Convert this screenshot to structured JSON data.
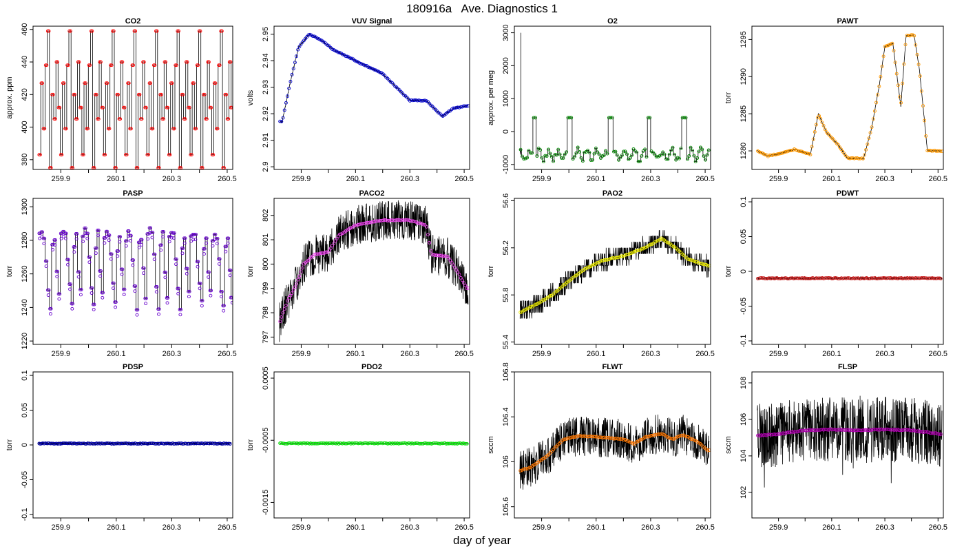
{
  "figure": {
    "title": "180916a   Ave. Diagnostics 1",
    "xlabel": "day of year"
  },
  "chart_data": [
    {
      "type": "line",
      "title": "CO2",
      "ylabel": "approx. ppm",
      "xlim": [
        259.8,
        260.52
      ],
      "ylim": [
        374,
        462
      ],
      "yticks": [
        380,
        400,
        420,
        440,
        460
      ],
      "xticks": [
        259.9,
        260.1,
        260.3,
        260.5
      ],
      "markerColor": "#ff0000",
      "pattern": "steps",
      "seed": 3,
      "stepLevels": [
        383,
        427,
        399,
        438,
        459,
        375,
        420,
        405,
        440,
        412
      ]
    },
    {
      "type": "line",
      "title": "VUV Signal",
      "ylabel": "volts",
      "xlim": [
        259.8,
        260.52
      ],
      "ylim": [
        2.899,
        2.953
      ],
      "yticks": [
        2.9,
        2.91,
        2.92,
        2.93,
        2.94,
        2.95
      ],
      "xticks": [
        259.9,
        260.1,
        260.3,
        260.5
      ],
      "markerColor": "#0000cc",
      "pattern": "curve",
      "seed": 5,
      "curve": [
        [
          259.83,
          2.917
        ],
        [
          259.86,
          2.932
        ],
        [
          259.89,
          2.945
        ],
        [
          259.93,
          2.95
        ],
        [
          259.97,
          2.948
        ],
        [
          260.02,
          2.944
        ],
        [
          260.08,
          2.941
        ],
        [
          260.14,
          2.938
        ],
        [
          260.2,
          2.935
        ],
        [
          260.26,
          2.929
        ],
        [
          260.3,
          2.925
        ],
        [
          260.36,
          2.925
        ],
        [
          260.42,
          2.919
        ],
        [
          260.46,
          2.922
        ],
        [
          260.51,
          2.923
        ]
      ]
    },
    {
      "type": "line",
      "title": "O2",
      "ylabel": "approx. per meg",
      "xlim": [
        259.8,
        260.52
      ],
      "ylim": [
        -1150,
        3200
      ],
      "yticks": [
        -1000,
        0,
        1000,
        2000,
        3000
      ],
      "xticks": [
        259.9,
        260.1,
        260.3,
        260.5
      ],
      "markerColor": "#008800",
      "pattern": "o2",
      "seed": 7,
      "spikeX": [
        259.87,
        260.0,
        260.15,
        260.29,
        260.42
      ]
    },
    {
      "type": "line",
      "title": "PAWT",
      "ylabel": "torr",
      "xlim": [
        259.8,
        260.52
      ],
      "ylim": [
        1277.5,
        1296.8
      ],
      "yticks": [
        1280,
        1285,
        1290,
        1295
      ],
      "xticks": [
        259.9,
        260.1,
        260.3,
        260.5
      ],
      "markerColor": "#ff9900",
      "pattern": "curve",
      "seed": 9,
      "curve": [
        [
          259.82,
          1280
        ],
        [
          259.86,
          1279.3
        ],
        [
          259.9,
          1279.6
        ],
        [
          259.96,
          1280.2
        ],
        [
          260.02,
          1279.5
        ],
        [
          260.05,
          1285
        ],
        [
          260.08,
          1282.5
        ],
        [
          260.12,
          1281
        ],
        [
          260.16,
          1279
        ],
        [
          260.22,
          1279
        ],
        [
          260.25,
          1283
        ],
        [
          260.28,
          1289
        ],
        [
          260.3,
          1294
        ],
        [
          260.33,
          1294.5
        ],
        [
          260.36,
          1286
        ],
        [
          260.38,
          1295.5
        ],
        [
          260.41,
          1295.6
        ],
        [
          260.43,
          1291
        ],
        [
          260.46,
          1280
        ],
        [
          260.51,
          1280
        ]
      ]
    },
    {
      "type": "line",
      "title": "PASP",
      "ylabel": "torr",
      "xlim": [
        259.8,
        260.52
      ],
      "ylim": [
        1218,
        1305
      ],
      "yticks": [
        1220,
        1240,
        1260,
        1280,
        1300
      ],
      "xticks": [
        259.9,
        260.1,
        260.3,
        260.5
      ],
      "markerColor": "#6600cc",
      "pattern": "sawtooth",
      "seed": 11,
      "stepLevels": [
        1282,
        1286,
        1284,
        1270,
        1252,
        1241,
        1276,
        1283,
        1262,
        1248
      ]
    },
    {
      "type": "line",
      "title": "PACO2",
      "ylabel": "torr",
      "xlim": [
        259.8,
        260.52
      ],
      "ylim": [
        796.7,
        802.7
      ],
      "yticks": [
        797,
        798,
        799,
        800,
        801,
        802
      ],
      "xticks": [
        259.9,
        260.1,
        260.3,
        260.5
      ],
      "markerColor": "#ee44ee",
      "pattern": "curve",
      "seed": 13,
      "noise": 0.55,
      "curve": [
        [
          259.82,
          797.6
        ],
        [
          259.85,
          798.5
        ],
        [
          259.88,
          799.1
        ],
        [
          259.91,
          800.0
        ],
        [
          259.95,
          800.4
        ],
        [
          260.0,
          800.5
        ],
        [
          260.04,
          801.2
        ],
        [
          260.1,
          801.6
        ],
        [
          260.2,
          801.8
        ],
        [
          260.3,
          801.8
        ],
        [
          260.36,
          801.6
        ],
        [
          260.38,
          800.4
        ],
        [
          260.44,
          800.3
        ],
        [
          260.48,
          799.6
        ],
        [
          260.51,
          799.0
        ]
      ]
    },
    {
      "type": "line",
      "title": "PAO2",
      "ylabel": "torr",
      "xlim": [
        259.8,
        260.52
      ],
      "ylim": [
        55.38,
        56.62
      ],
      "yticks": [
        55.4,
        55.8,
        56.2,
        56.6
      ],
      "xticks": [
        259.9,
        260.1,
        260.3,
        260.5
      ],
      "markerColor": "#eeee00",
      "pattern": "curve",
      "seed": 17,
      "noise": 0.28,
      "quant": 0.05,
      "curve": [
        [
          259.82,
          55.65
        ],
        [
          259.88,
          55.72
        ],
        [
          259.94,
          55.8
        ],
        [
          260.0,
          55.92
        ],
        [
          260.06,
          56.02
        ],
        [
          260.12,
          56.09
        ],
        [
          260.2,
          56.13
        ],
        [
          260.28,
          56.2
        ],
        [
          260.34,
          56.28
        ],
        [
          260.38,
          56.22
        ],
        [
          260.44,
          56.1
        ],
        [
          260.51,
          56.05
        ]
      ]
    },
    {
      "type": "line",
      "title": "PDWT",
      "ylabel": "torr",
      "xlim": [
        259.8,
        260.52
      ],
      "ylim": [
        -0.105,
        0.105
      ],
      "yticks": [
        -0.1,
        -0.05,
        0.0,
        0.05,
        0.1
      ],
      "xticks": [
        259.9,
        260.1,
        260.3,
        260.5
      ],
      "markerColor": "#cc2222",
      "pattern": "flat",
      "seed": 19,
      "noise": 0.035,
      "curve": [
        [
          259.82,
          -0.01
        ],
        [
          260.51,
          -0.01
        ]
      ]
    },
    {
      "type": "line",
      "title": "PDSP",
      "ylabel": "torr",
      "xlim": [
        259.8,
        260.52
      ],
      "ylim": [
        -0.105,
        0.105
      ],
      "yticks": [
        -0.1,
        -0.05,
        0.0,
        0.05,
        0.1
      ],
      "xticks": [
        259.9,
        260.1,
        260.3,
        260.5
      ],
      "markerColor": "#0000aa",
      "pattern": "flat",
      "seed": 23,
      "noise": 0.04,
      "curve": [
        [
          259.82,
          0.002
        ],
        [
          260.51,
          0.002
        ]
      ]
    },
    {
      "type": "line",
      "title": "PDO2",
      "ylabel": "torr",
      "xlim": [
        259.8,
        260.52
      ],
      "ylim": [
        -0.00175,
        0.0006
      ],
      "yticks": [
        -0.0015,
        -0.0005,
        0.0005
      ],
      "xticks": [
        259.9,
        260.1,
        260.3,
        260.5
      ],
      "markerColor": "#00dd00",
      "pattern": "flat",
      "seed": 29,
      "noise": 0.00018,
      "curve": [
        [
          259.82,
          -0.00055
        ],
        [
          260.51,
          -0.00055
        ]
      ]
    },
    {
      "type": "line",
      "title": "FLWT",
      "ylabel": "sccm",
      "xlim": [
        259.8,
        260.52
      ],
      "ylim": [
        105.5,
        106.8
      ],
      "yticks": [
        105.6,
        106.0,
        106.4,
        106.8
      ],
      "xticks": [
        259.9,
        260.1,
        260.3,
        260.5
      ],
      "markerColor": "#ff7700",
      "pattern": "curve",
      "seed": 31,
      "noise": 0.55,
      "curve": [
        [
          259.82,
          105.92
        ],
        [
          259.86,
          105.95
        ],
        [
          259.92,
          106.05
        ],
        [
          259.98,
          106.2
        ],
        [
          260.04,
          106.23
        ],
        [
          260.1,
          106.22
        ],
        [
          260.16,
          106.21
        ],
        [
          260.2,
          106.2
        ],
        [
          260.24,
          106.16
        ],
        [
          260.28,
          106.22
        ],
        [
          260.34,
          106.25
        ],
        [
          260.38,
          106.2
        ],
        [
          260.42,
          106.24
        ],
        [
          260.47,
          106.18
        ],
        [
          260.51,
          106.1
        ]
      ]
    },
    {
      "type": "line",
      "title": "FLSP",
      "ylabel": "sccm",
      "xlim": [
        259.8,
        260.52
      ],
      "ylim": [
        100.6,
        108.6
      ],
      "yticks": [
        102,
        104,
        106,
        108
      ],
      "xticks": [
        259.9,
        260.1,
        260.3,
        260.5
      ],
      "markerColor": "#aa00aa",
      "pattern": "flsp",
      "seed": 37,
      "noise": 0.9,
      "curve": [
        [
          259.82,
          105.1
        ],
        [
          259.9,
          105.2
        ],
        [
          260.0,
          105.4
        ],
        [
          260.1,
          105.45
        ],
        [
          260.2,
          105.4
        ],
        [
          260.3,
          105.45
        ],
        [
          260.4,
          105.4
        ],
        [
          260.51,
          105.2
        ]
      ]
    }
  ]
}
